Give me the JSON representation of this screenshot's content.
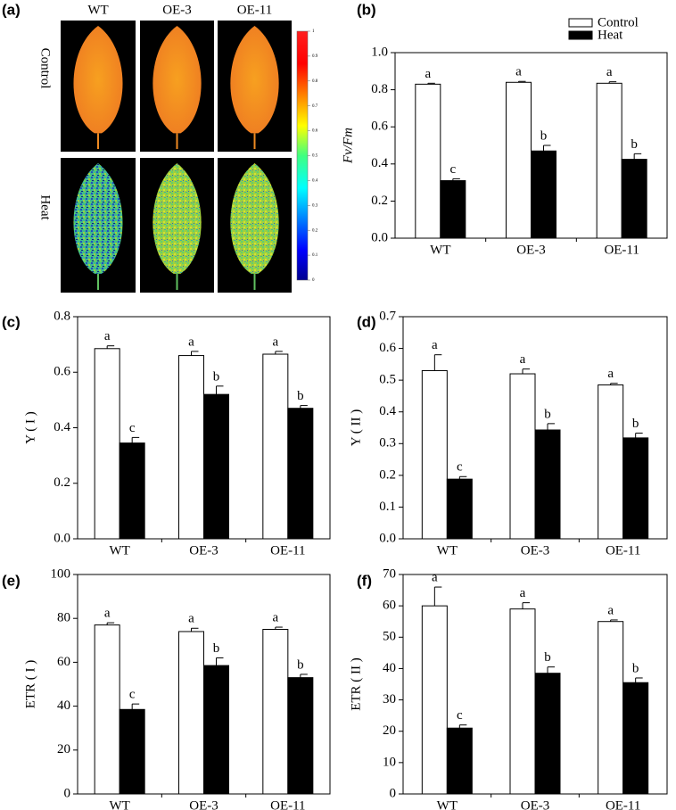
{
  "chart_data": [
    {
      "type": "image",
      "panel": "(a)",
      "columns": [
        "WT",
        "OE-3",
        "OE-11"
      ],
      "rows": [
        "Control",
        "Heat"
      ],
      "clim": [
        0,
        1
      ],
      "cticks": [
        0,
        0.1,
        0.2,
        0.3,
        0.4,
        0.5,
        0.6,
        0.7,
        0.8,
        0.9,
        1
      ]
    },
    {
      "type": "bar",
      "panel": "(b)",
      "ylabel": "Fv/Fm",
      "categories": [
        "WT",
        "OE-3",
        "OE-11"
      ],
      "series": [
        {
          "name": "Control",
          "color": "#ffffff",
          "values": [
            0.83,
            0.84,
            0.835
          ],
          "errors": [
            0.005,
            0.005,
            0.008
          ],
          "letters": [
            "a",
            "a",
            "a"
          ]
        },
        {
          "name": "Heat",
          "color": "#000000",
          "values": [
            0.31,
            0.47,
            0.425
          ],
          "errors": [
            0.01,
            0.03,
            0.03
          ],
          "letters": [
            "c",
            "b",
            "b"
          ]
        }
      ],
      "ylim": [
        0,
        1.0
      ],
      "yticks": [
        {
          "value": 0,
          "label": "0.0"
        },
        0.2,
        0.4,
        0.6,
        0.8,
        {
          "value": 1,
          "label": "1.0"
        }
      ],
      "legend": "top-right"
    },
    {
      "type": "bar",
      "panel": "(c)",
      "ylabel": "Y ( I )",
      "categories": [
        "WT",
        "OE-3",
        "OE-11"
      ],
      "series": [
        {
          "name": "Control",
          "color": "#ffffff",
          "values": [
            0.685,
            0.66,
            0.665
          ],
          "errors": [
            0.01,
            0.015,
            0.01
          ],
          "letters": [
            "a",
            "a",
            "a"
          ]
        },
        {
          "name": "Heat",
          "color": "#000000",
          "values": [
            0.345,
            0.52,
            0.47
          ],
          "errors": [
            0.02,
            0.03,
            0.01
          ],
          "letters": [
            "c",
            "b",
            "b"
          ]
        }
      ],
      "ylim": [
        0,
        0.8
      ],
      "yticks": [
        {
          "value": 0,
          "label": "0.0"
        },
        0.2,
        0.4,
        0.6,
        0.8
      ]
    },
    {
      "type": "bar",
      "panel": "(d)",
      "ylabel": "Y ( II )",
      "categories": [
        "WT",
        "OE-3",
        "OE-11"
      ],
      "series": [
        {
          "name": "Control",
          "color": "#ffffff",
          "values": [
            0.53,
            0.52,
            0.485
          ],
          "errors": [
            0.05,
            0.015,
            0.005
          ],
          "letters": [
            "a",
            "a",
            "a"
          ]
        },
        {
          "name": "Heat",
          "color": "#000000",
          "values": [
            0.188,
            0.343,
            0.318
          ],
          "errors": [
            0.008,
            0.02,
            0.015
          ],
          "letters": [
            "c",
            "b",
            "b"
          ]
        }
      ],
      "ylim": [
        0,
        0.7
      ],
      "yticks": [
        {
          "value": 0,
          "label": "0.0"
        },
        0.1,
        0.2,
        0.3,
        0.4,
        0.5,
        0.6,
        0.7
      ]
    },
    {
      "type": "bar",
      "panel": "(e)",
      "ylabel": "ETR ( I )",
      "categories": [
        "WT",
        "OE-3",
        "OE-11"
      ],
      "series": [
        {
          "name": "Control",
          "color": "#ffffff",
          "values": [
            77,
            74,
            75
          ],
          "errors": [
            1,
            1.5,
            1
          ],
          "letters": [
            "a",
            "a",
            "a"
          ]
        },
        {
          "name": "Heat",
          "color": "#000000",
          "values": [
            38.5,
            58.5,
            53
          ],
          "errors": [
            2.5,
            3.5,
            1.5
          ],
          "letters": [
            "c",
            "b",
            "b"
          ]
        }
      ],
      "ylim": [
        0,
        100
      ],
      "yticks": [
        0,
        20,
        40,
        60,
        80,
        100
      ]
    },
    {
      "type": "bar",
      "panel": "(f)",
      "ylabel": "ETR ( II )",
      "categories": [
        "WT",
        "OE-3",
        "OE-11"
      ],
      "series": [
        {
          "name": "Control",
          "color": "#ffffff",
          "values": [
            60,
            59,
            55
          ],
          "errors": [
            6,
            2,
            0.5
          ],
          "letters": [
            "a",
            "a",
            "a"
          ]
        },
        {
          "name": "Heat",
          "color": "#000000",
          "values": [
            21,
            38.5,
            35.5
          ],
          "errors": [
            1,
            2,
            1.5
          ],
          "letters": [
            "c",
            "b",
            "b"
          ]
        }
      ],
      "ylim": [
        0,
        70
      ],
      "yticks": [
        0,
        10,
        20,
        30,
        40,
        50,
        60,
        70
      ]
    }
  ]
}
